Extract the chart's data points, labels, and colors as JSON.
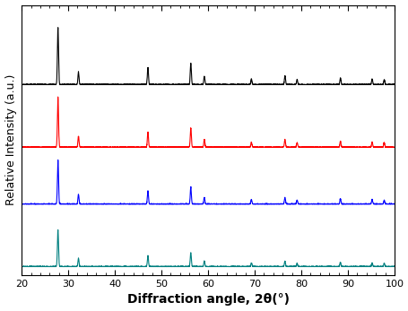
{
  "xmin": 20,
  "xmax": 100,
  "colors": [
    "black",
    "red",
    "blue",
    "#008080"
  ],
  "offsets": [
    3.2,
    2.1,
    1.1,
    0.0
  ],
  "peak_positions": [
    27.8,
    32.2,
    47.1,
    56.3,
    59.2,
    69.3,
    76.5,
    79.1,
    88.4,
    95.2,
    97.8
  ],
  "peak_heights_base": [
    1.0,
    0.22,
    0.3,
    0.38,
    0.15,
    0.1,
    0.15,
    0.09,
    0.12,
    0.1,
    0.09
  ],
  "scale_factors": [
    1.0,
    0.88,
    0.78,
    0.65
  ],
  "noise_level": 0.004,
  "fwhm": 0.28,
  "xlabel": "Diffraction angle, 2θ(°)",
  "ylabel": "Relative Intensity (a.u.)",
  "xlabel_fontsize": 10,
  "ylabel_fontsize": 9,
  "tick_fontsize": 8,
  "linewidth": 0.8,
  "seeds": [
    42,
    43,
    44,
    45
  ]
}
